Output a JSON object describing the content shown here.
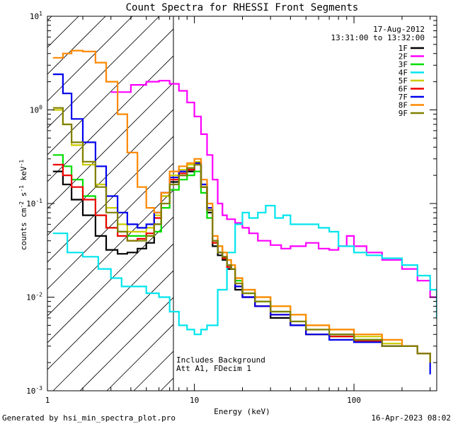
{
  "chart_data": {
    "type": "line",
    "title": "Count Spectra for RHESSI Front Segments",
    "xlabel": "Energy (keV)",
    "ylabel": "counts cm^-2 s^-1 keV^-1",
    "xscale": "log",
    "yscale": "log",
    "xlim": [
      1.2,
      330
    ],
    "ylim": [
      0.001,
      10
    ],
    "x_ticks": [
      {
        "value": 1,
        "label": "1"
      },
      {
        "value": 10,
        "label": "10"
      },
      {
        "value": 100,
        "label": "100"
      }
    ],
    "y_ticks": [
      {
        "value": 0.001,
        "label": "10",
        "exp": "-3"
      },
      {
        "value": 0.01,
        "label": "10",
        "exp": "-2"
      },
      {
        "value": 0.1,
        "label": "10",
        "exp": "-1"
      },
      {
        "value": 1,
        "label": "10",
        "exp": "0"
      },
      {
        "value": 10,
        "label": "10",
        "exp": "1"
      }
    ],
    "date": "17-Aug-2012",
    "time_range": "13:31:00 to 13:32:00",
    "annotation_lines": [
      "Includes Background",
      "Att A1, FDecim 1"
    ],
    "hatched_region_max_energy": 6,
    "series": [
      {
        "name": "1F",
        "color": "#000000",
        "x": [
          1.3,
          1.5,
          1.7,
          2,
          2.4,
          2.8,
          3.3,
          3.8,
          4.4,
          5,
          5.6,
          6.2,
          7,
          8,
          9,
          10,
          11,
          12,
          13,
          14,
          15,
          16,
          17,
          18,
          20,
          24,
          30,
          40,
          50,
          70,
          100,
          150,
          200,
          250,
          300
        ],
        "y": [
          0.22,
          0.16,
          0.11,
          0.075,
          0.045,
          0.032,
          0.029,
          0.03,
          0.033,
          0.038,
          0.06,
          0.12,
          0.17,
          0.2,
          0.22,
          0.26,
          0.15,
          0.08,
          0.035,
          0.028,
          0.025,
          0.02,
          0.02,
          0.012,
          0.01,
          0.008,
          0.006,
          0.005,
          0.004,
          0.004,
          0.0035,
          0.003,
          0.003,
          0.0025,
          0.002
        ]
      },
      {
        "name": "2F",
        "color": "#ff00ff",
        "x": [
          3,
          4,
          5,
          6,
          7,
          8,
          9,
          10,
          11,
          12,
          13,
          14,
          15,
          16,
          18,
          20,
          22,
          25,
          30,
          35,
          40,
          50,
          60,
          70,
          80,
          90,
          100,
          120,
          150,
          200,
          250,
          300,
          330
        ],
        "y": [
          1.55,
          1.85,
          2.0,
          2.05,
          1.9,
          1.6,
          1.2,
          0.85,
          0.55,
          0.33,
          0.18,
          0.1,
          0.075,
          0.068,
          0.062,
          0.055,
          0.048,
          0.04,
          0.036,
          0.033,
          0.035,
          0.038,
          0.033,
          0.032,
          0.035,
          0.045,
          0.035,
          0.03,
          0.025,
          0.02,
          0.015,
          0.01,
          0.009
        ]
      },
      {
        "name": "3F",
        "color": "#00dd00",
        "x": [
          1.3,
          1.5,
          1.7,
          2,
          2.4,
          2.8,
          3.3,
          3.8,
          4.4,
          5,
          5.6,
          6.2,
          7,
          8,
          9,
          10,
          11,
          12,
          13,
          14,
          15,
          16,
          17,
          18,
          20,
          24,
          30,
          40,
          50,
          70,
          100,
          150,
          200,
          250,
          300
        ],
        "y": [
          0.33,
          0.25,
          0.18,
          0.12,
          0.075,
          0.055,
          0.05,
          0.045,
          0.045,
          0.045,
          0.05,
          0.09,
          0.14,
          0.18,
          0.2,
          0.22,
          0.13,
          0.07,
          0.038,
          0.03,
          0.026,
          0.022,
          0.02,
          0.015,
          0.011,
          0.009,
          0.007,
          0.005,
          0.004,
          0.0038,
          0.0035,
          0.003,
          0.003,
          0.0025,
          0.002
        ]
      },
      {
        "name": "4F",
        "color": "#00e5ee",
        "x": [
          1.3,
          1.6,
          2,
          2.5,
          3,
          3.5,
          4,
          4.5,
          5,
          6,
          7,
          8,
          9,
          10,
          11,
          12,
          14,
          16,
          18,
          20,
          22,
          25,
          28,
          32,
          36,
          40,
          50,
          60,
          70,
          80,
          100,
          120,
          150,
          200,
          250,
          300,
          330
        ],
        "y": [
          0.048,
          0.03,
          0.027,
          0.02,
          0.016,
          0.013,
          0.013,
          0.013,
          0.011,
          0.01,
          0.007,
          0.005,
          0.0045,
          0.004,
          0.0045,
          0.005,
          0.012,
          0.03,
          0.06,
          0.08,
          0.07,
          0.08,
          0.095,
          0.07,
          0.075,
          0.06,
          0.06,
          0.055,
          0.05,
          0.035,
          0.03,
          0.028,
          0.026,
          0.022,
          0.017,
          0.012,
          0.006
        ]
      },
      {
        "name": "5F",
        "color": "#cccc00",
        "x": [
          1.3,
          1.5,
          1.7,
          2,
          2.4,
          2.8,
          3.3,
          3.8,
          4.4,
          5,
          5.6,
          6.2,
          7,
          8,
          9,
          10,
          11,
          12,
          13,
          14,
          15,
          16,
          17,
          18,
          20,
          24,
          30,
          40,
          50,
          70,
          100,
          150,
          200,
          250,
          300
        ],
        "y": [
          1.0,
          0.7,
          0.42,
          0.26,
          0.16,
          0.09,
          0.06,
          0.05,
          0.05,
          0.055,
          0.075,
          0.12,
          0.2,
          0.23,
          0.26,
          0.28,
          0.16,
          0.09,
          0.04,
          0.035,
          0.03,
          0.025,
          0.022,
          0.016,
          0.012,
          0.01,
          0.008,
          0.0065,
          0.005,
          0.0045,
          0.0038,
          0.0032,
          0.003,
          0.0025,
          0.002
        ]
      },
      {
        "name": "6F",
        "color": "#ee0000",
        "x": [
          1.3,
          1.5,
          1.7,
          2,
          2.4,
          2.8,
          3.3,
          3.8,
          4.4,
          5,
          5.6,
          6.2,
          7,
          8,
          9,
          10,
          11,
          12,
          13,
          14,
          15,
          16,
          17,
          18,
          20,
          24,
          30,
          40,
          50,
          70,
          100,
          150,
          200,
          250,
          300
        ],
        "y": [
          0.26,
          0.2,
          0.15,
          0.11,
          0.075,
          0.055,
          0.045,
          0.04,
          0.042,
          0.048,
          0.07,
          0.13,
          0.18,
          0.21,
          0.23,
          0.27,
          0.15,
          0.085,
          0.038,
          0.03,
          0.026,
          0.021,
          0.02,
          0.013,
          0.01,
          0.008,
          0.0065,
          0.005,
          0.004,
          0.0038,
          0.0034,
          0.003,
          0.003,
          0.0025,
          0.002
        ]
      },
      {
        "name": "7F",
        "color": "#0000ee",
        "x": [
          1.3,
          1.5,
          1.7,
          2,
          2.4,
          2.8,
          3.3,
          3.8,
          4.4,
          5,
          5.6,
          6.2,
          7,
          8,
          9,
          10,
          11,
          12,
          13,
          14,
          15,
          16,
          17,
          18,
          20,
          24,
          30,
          40,
          50,
          70,
          100,
          150,
          200,
          250,
          300
        ],
        "y": [
          2.4,
          1.5,
          0.8,
          0.45,
          0.25,
          0.12,
          0.08,
          0.06,
          0.055,
          0.06,
          0.08,
          0.13,
          0.19,
          0.22,
          0.24,
          0.27,
          0.16,
          0.09,
          0.04,
          0.03,
          0.027,
          0.022,
          0.02,
          0.013,
          0.01,
          0.008,
          0.0065,
          0.005,
          0.004,
          0.0035,
          0.0033,
          0.003,
          0.003,
          0.0025,
          0.0015
        ]
      },
      {
        "name": "8F",
        "color": "#ff8800",
        "x": [
          1.3,
          1.5,
          1.7,
          2,
          2.4,
          2.8,
          3.3,
          3.8,
          4.4,
          5,
          5.6,
          6.2,
          7,
          8,
          9,
          10,
          11,
          12,
          13,
          14,
          15,
          16,
          17,
          18,
          20,
          24,
          30,
          40,
          50,
          70,
          100,
          150,
          200,
          250,
          300
        ],
        "y": [
          3.6,
          4.0,
          4.3,
          4.2,
          3.2,
          2.0,
          0.9,
          0.35,
          0.15,
          0.09,
          0.08,
          0.13,
          0.22,
          0.25,
          0.27,
          0.3,
          0.18,
          0.1,
          0.045,
          0.035,
          0.03,
          0.025,
          0.022,
          0.016,
          0.012,
          0.01,
          0.008,
          0.0065,
          0.005,
          0.0045,
          0.004,
          0.0035,
          0.003,
          0.0025,
          0.002
        ]
      },
      {
        "name": "9F",
        "color": "#808000",
        "x": [
          1.3,
          1.5,
          1.7,
          2,
          2.4,
          2.8,
          3.3,
          3.8,
          4.4,
          5,
          5.6,
          6.2,
          7,
          8,
          9,
          10,
          11,
          12,
          13,
          14,
          15,
          16,
          17,
          18,
          20,
          24,
          30,
          40,
          50,
          70,
          100,
          150,
          200,
          250,
          300
        ],
        "y": [
          1.05,
          0.7,
          0.45,
          0.28,
          0.15,
          0.08,
          0.05,
          0.04,
          0.04,
          0.045,
          0.06,
          0.1,
          0.16,
          0.2,
          0.24,
          0.26,
          0.15,
          0.085,
          0.04,
          0.03,
          0.027,
          0.022,
          0.02,
          0.014,
          0.011,
          0.009,
          0.007,
          0.0055,
          0.0045,
          0.004,
          0.0035,
          0.003,
          0.003,
          0.0025,
          0.002
        ]
      }
    ]
  },
  "footer": {
    "left": "Generated by hsi_min_spectra_plot.pro",
    "right": "16-Apr-2023 08:02"
  }
}
